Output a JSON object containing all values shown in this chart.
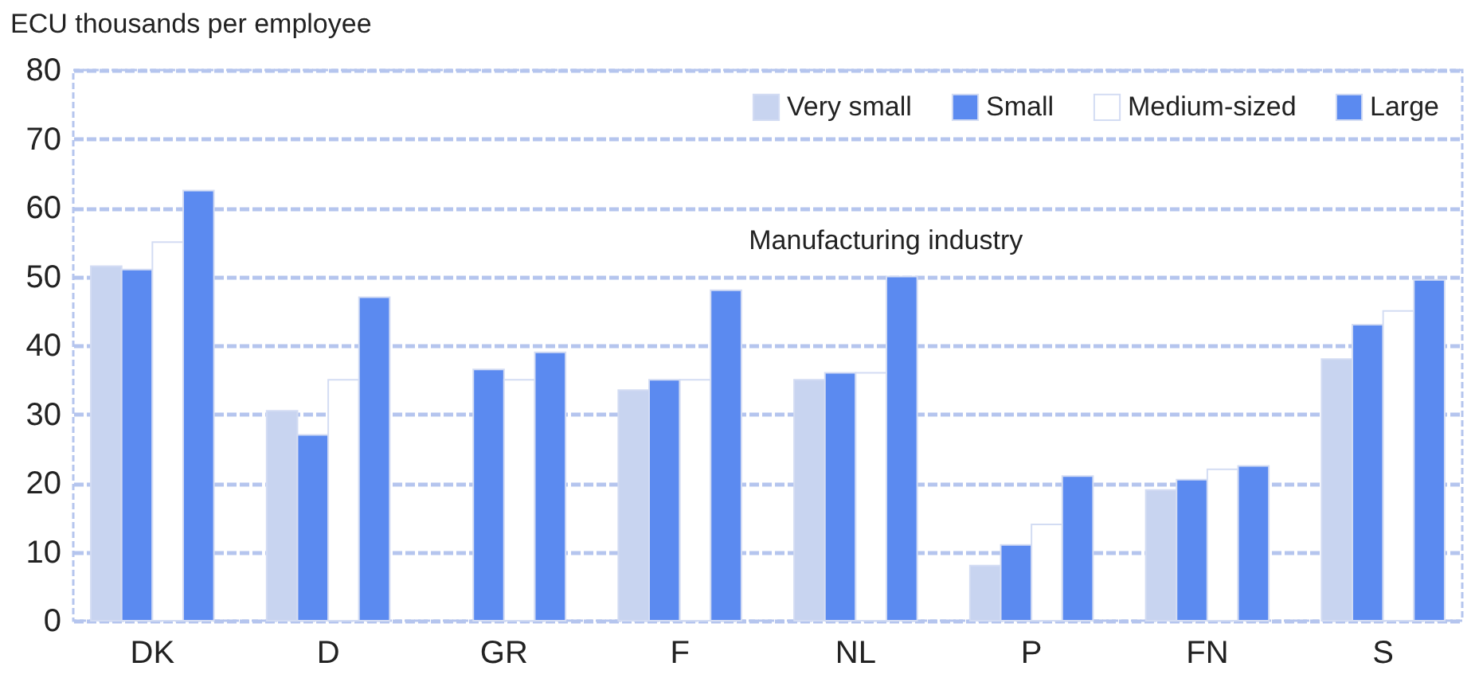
{
  "chart_data": {
    "type": "bar",
    "ylabel": "ECU thousands per employee",
    "categories": [
      "DK",
      "D",
      "GR",
      "F",
      "NL",
      "P",
      "FN",
      "S"
    ],
    "series": [
      {
        "name": "Very small",
        "color": "#c8d4f0",
        "values": [
          51.5,
          30.5,
          null,
          33.5,
          35,
          8,
          19,
          38
        ]
      },
      {
        "name": "Small",
        "color": "#5b8af0",
        "values": [
          51,
          27,
          36.5,
          35,
          36,
          11,
          20.5,
          43
        ]
      },
      {
        "name": "Medium-sized",
        "color": "#ffffff",
        "values": [
          55,
          35,
          35,
          35,
          36,
          14,
          22,
          45
        ]
      },
      {
        "name": "Large",
        "color": "#5b8af0",
        "values": [
          62.5,
          47,
          39,
          48,
          50,
          21,
          22.5,
          49.5
        ]
      }
    ],
    "annotations": [
      "Manufacturing industry"
    ],
    "ylim": [
      0,
      80
    ],
    "yticks": [
      0,
      10,
      20,
      30,
      40,
      50,
      60,
      70,
      80
    ],
    "grid": "y",
    "legend": "top right"
  }
}
